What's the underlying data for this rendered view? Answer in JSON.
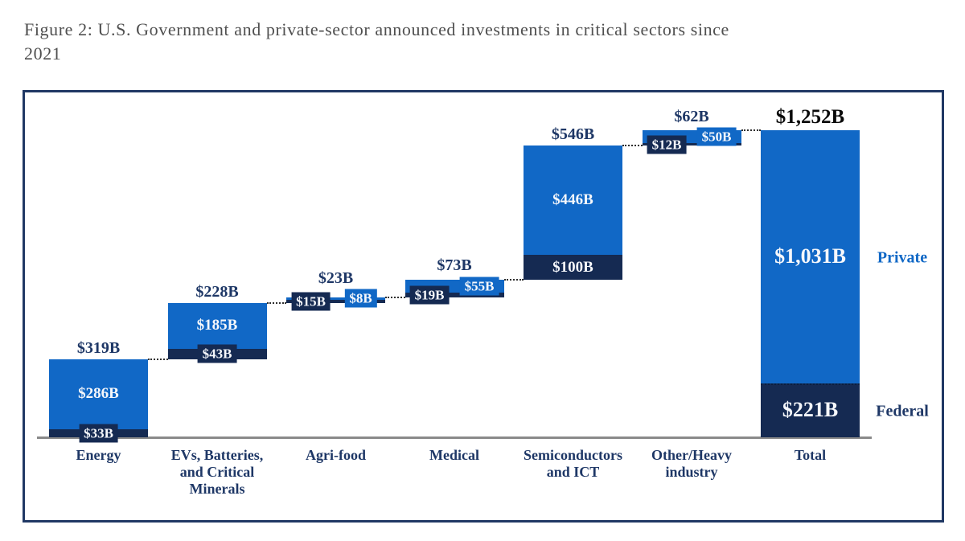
{
  "title": {
    "line1": "Figure 2: U.S. Government and private-sector announced investments in critical sectors since",
    "line2": "2021"
  },
  "legend": {
    "private": "Private",
    "federal": "Federal"
  },
  "colors": {
    "private_blue": "#1168c6",
    "federal_navy": "#152a52",
    "text_navy": "#1e3766",
    "grand_total_text": "#0a0a0a",
    "segment_text": "#f5f7fb",
    "axis_gray": "#8a8a8a",
    "frame_navy": "#203864",
    "title_gray": "#4f4f4f",
    "connector": "#2f2f2f"
  },
  "chart_data": {
    "type": "bar",
    "subtype": "waterfall-stacked",
    "unit": "USD billions",
    "series_names": [
      "Federal",
      "Private"
    ],
    "legend_position": "right-of-total-bar",
    "grid": false,
    "ylim": [
      0,
      1252
    ],
    "bars": [
      {
        "category_lines": [
          "Energy"
        ],
        "federal": 33,
        "private": 286,
        "total": 319,
        "is_total": false,
        "labels": {
          "total": "$319B",
          "federal": "$33B",
          "private": "$286B"
        }
      },
      {
        "category_lines": [
          "EVs, Batteries,",
          "and Critical",
          "Minerals"
        ],
        "federal": 43,
        "private": 185,
        "total": 228,
        "is_total": false,
        "labels": {
          "total": "$228B",
          "federal": "$43B",
          "private": "$185B"
        }
      },
      {
        "category_lines": [
          "Agri-food"
        ],
        "federal": 15,
        "private": 8,
        "total": 23,
        "is_total": false,
        "labels": {
          "total": "$23B",
          "federal": "$15B",
          "private": "$8B"
        }
      },
      {
        "category_lines": [
          "Medical"
        ],
        "federal": 19,
        "private": 55,
        "total": 73,
        "is_total": false,
        "labels": {
          "total": "$73B",
          "federal": "$19B",
          "private": "$55B"
        }
      },
      {
        "category_lines": [
          "Semiconductors",
          "and ICT"
        ],
        "federal": 100,
        "private": 446,
        "total": 546,
        "is_total": false,
        "labels": {
          "total": "$546B",
          "federal": "$100B",
          "private": "$446B"
        }
      },
      {
        "category_lines": [
          "Other/Heavy",
          "industry"
        ],
        "federal": 12,
        "private": 50,
        "total": 62,
        "is_total": false,
        "labels": {
          "total": "$62B",
          "federal": "$12B",
          "private": "$50B"
        }
      },
      {
        "category_lines": [
          "Total"
        ],
        "federal": 221,
        "private": 1031,
        "total": 1252,
        "is_total": true,
        "labels": {
          "total": "$1,252B",
          "federal": "$221B",
          "private": "$1,031B"
        }
      }
    ]
  }
}
